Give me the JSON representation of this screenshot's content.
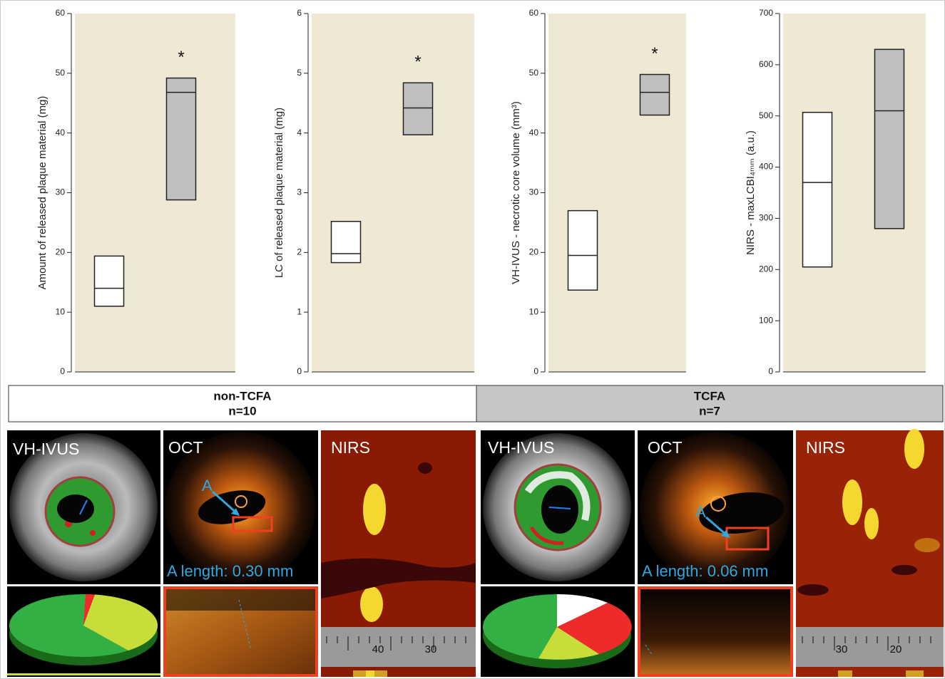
{
  "chart_data": [
    {
      "type": "box",
      "ylabel": "Amount of released plaque material (mg)",
      "ylim": [
        0,
        60
      ],
      "yticks": [
        0,
        10,
        20,
        30,
        40,
        50,
        60
      ],
      "boxes": [
        {
          "low": 11,
          "median": 14,
          "high": 19.4,
          "color": "#ffffff"
        },
        {
          "low": 28.8,
          "median": 46.8,
          "high": 49.2,
          "color": "#bfbfbf",
          "annotation": "*"
        }
      ]
    },
    {
      "type": "box",
      "ylabel": "LC of released plaque material (mg)",
      "ylim": [
        0,
        6
      ],
      "yticks": [
        0,
        1,
        2,
        3,
        4,
        5,
        6
      ],
      "boxes": [
        {
          "low": 1.83,
          "median": 1.98,
          "high": 2.52,
          "color": "#ffffff"
        },
        {
          "low": 3.97,
          "median": 4.42,
          "high": 4.84,
          "color": "#bfbfbf",
          "annotation": "*"
        }
      ]
    },
    {
      "type": "box",
      "ylabel": "VH-IVUS - necrotic core volume (mm³)",
      "ylim": [
        0,
        60
      ],
      "yticks": [
        0,
        10,
        20,
        30,
        40,
        50,
        60
      ],
      "boxes": [
        {
          "low": 13.7,
          "median": 19.5,
          "high": 27,
          "color": "#ffffff"
        },
        {
          "low": 43,
          "median": 46.8,
          "high": 49.8,
          "color": "#bfbfbf",
          "annotation": "*"
        }
      ]
    },
    {
      "type": "box",
      "ylabel": "NIRS - maxLCBI₄ₘₘ (a.u.)",
      "ylim": [
        0,
        700
      ],
      "yticks": [
        0,
        100,
        200,
        300,
        400,
        500,
        600,
        700
      ],
      "boxes": [
        {
          "low": 205,
          "median": 370,
          "high": 507,
          "color": "#ffffff"
        },
        {
          "low": 280,
          "median": 510,
          "high": 630,
          "color": "#bfbfbf"
        }
      ]
    }
  ],
  "groups": [
    {
      "name": "non-TCFA",
      "n": "n=10"
    },
    {
      "name": "TCFA",
      "n": "n=7"
    }
  ],
  "images": [
    {
      "label": "VH-IVUS"
    },
    {
      "label": "OCT",
      "marker": "A",
      "caption": "A length: 0.30 mm"
    },
    {
      "label": "NIRS",
      "scale": [
        "40",
        "30"
      ]
    },
    {
      "label": "VH-IVUS"
    },
    {
      "label": "OCT",
      "marker": "A",
      "caption": "A length: 0.06 mm"
    },
    {
      "label": "NIRS",
      "scale": [
        "30",
        "20"
      ]
    }
  ]
}
